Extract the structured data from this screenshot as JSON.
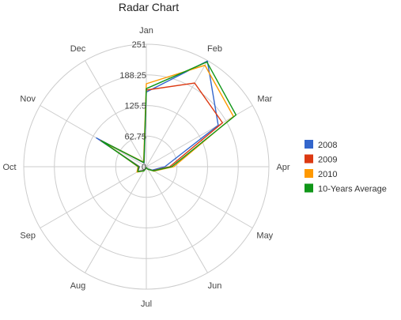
{
  "chart_data": {
    "type": "radar",
    "title": "Radar Chart",
    "categories": [
      "Jan",
      "Feb",
      "Mar",
      "Apr",
      "May",
      "Jun",
      "Jul",
      "Aug",
      "Sep",
      "Oct",
      "Nov",
      "Dec"
    ],
    "ticks": [
      "0",
      "62.75",
      "125.5",
      "188.25",
      "251"
    ],
    "rlim": [
      0,
      251
    ],
    "grid": true,
    "legend_position": "right",
    "series": [
      {
        "name": "2008",
        "color": "#3366cc",
        "values": [
          153,
          250,
          170,
          38,
          14,
          5,
          2,
          8,
          20,
          14,
          118,
          9
        ]
      },
      {
        "name": "2009",
        "color": "#dc3912",
        "values": [
          157,
          198,
          180,
          48,
          16,
          6,
          2,
          9,
          20,
          15,
          108,
          10
        ]
      },
      {
        "name": "2010",
        "color": "#ff9900",
        "values": [
          170,
          240,
          206,
          56,
          18,
          6,
          2,
          10,
          22,
          17,
          100,
          11
        ]
      },
      {
        "name": "10-Years Average",
        "color": "#109618",
        "values": [
          160,
          248,
          212,
          52,
          17,
          6,
          2,
          10,
          20,
          16,
          107,
          10
        ]
      }
    ]
  }
}
